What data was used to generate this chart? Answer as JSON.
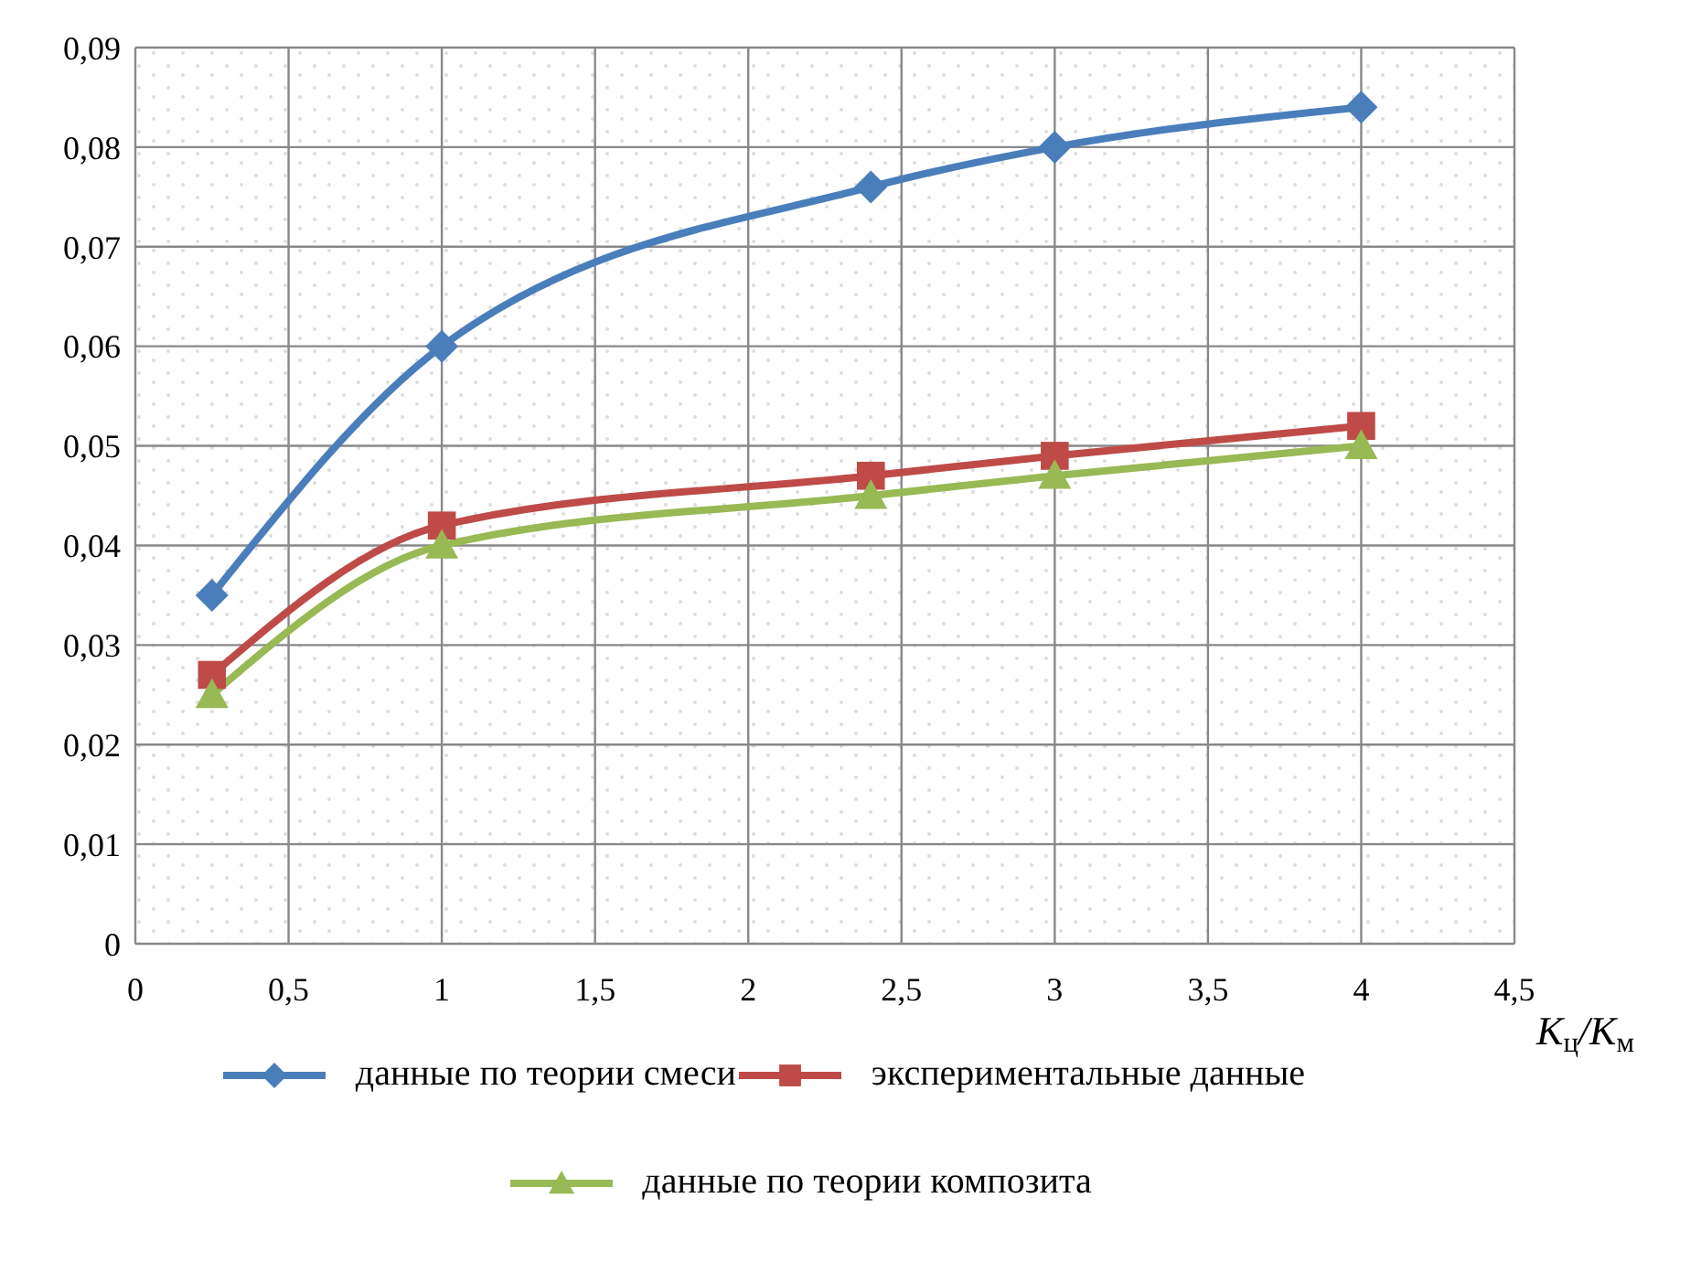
{
  "chart_data": {
    "type": "line",
    "xlabel": "K$_{ц}$/K$_{м}$",
    "x": [
      0.25,
      1,
      2.4,
      3,
      4
    ],
    "series": [
      {
        "name": "данные по теории смеси",
        "color": "#4a7ebb",
        "marker": "diamond",
        "values": [
          0.035,
          0.06,
          0.076,
          0.08,
          0.084
        ]
      },
      {
        "name": "экспериментальные данные",
        "color": "#be4b48",
        "marker": "square",
        "values": [
          0.027,
          0.042,
          0.047,
          0.049,
          0.052
        ]
      },
      {
        "name": "данные по теории композита",
        "color": "#98b954",
        "marker": "triangle",
        "values": [
          0.025,
          0.04,
          0.045,
          0.047,
          0.05
        ]
      }
    ],
    "xlim": [
      0,
      4.5
    ],
    "xticks": [
      0,
      {
        "value": 0.5,
        "label": "0,5"
      },
      1,
      {
        "value": 1.5,
        "label": "1,5"
      },
      2,
      {
        "value": 2.5,
        "label": "2,5"
      },
      3,
      {
        "value": 3.5,
        "label": "3,5"
      },
      4,
      {
        "value": 4.5,
        "label": "4,5"
      }
    ],
    "ylim": [
      0,
      0.09
    ],
    "yticks": [
      0,
      {
        "value": 0.01,
        "label": "0,01"
      },
      {
        "value": 0.02,
        "label": "0,02"
      },
      {
        "value": 0.03,
        "label": "0,03"
      },
      {
        "value": 0.04,
        "label": "0,04"
      },
      {
        "value": 0.05,
        "label": "0,05"
      },
      {
        "value": 0.06,
        "label": "0,06"
      },
      {
        "value": 0.07,
        "label": "0,07"
      },
      {
        "value": 0.08,
        "label": "0,08"
      },
      {
        "value": 0.09,
        "label": "0,09"
      }
    ],
    "grid": true,
    "legend": "bottom",
    "line_style": "solid"
  }
}
